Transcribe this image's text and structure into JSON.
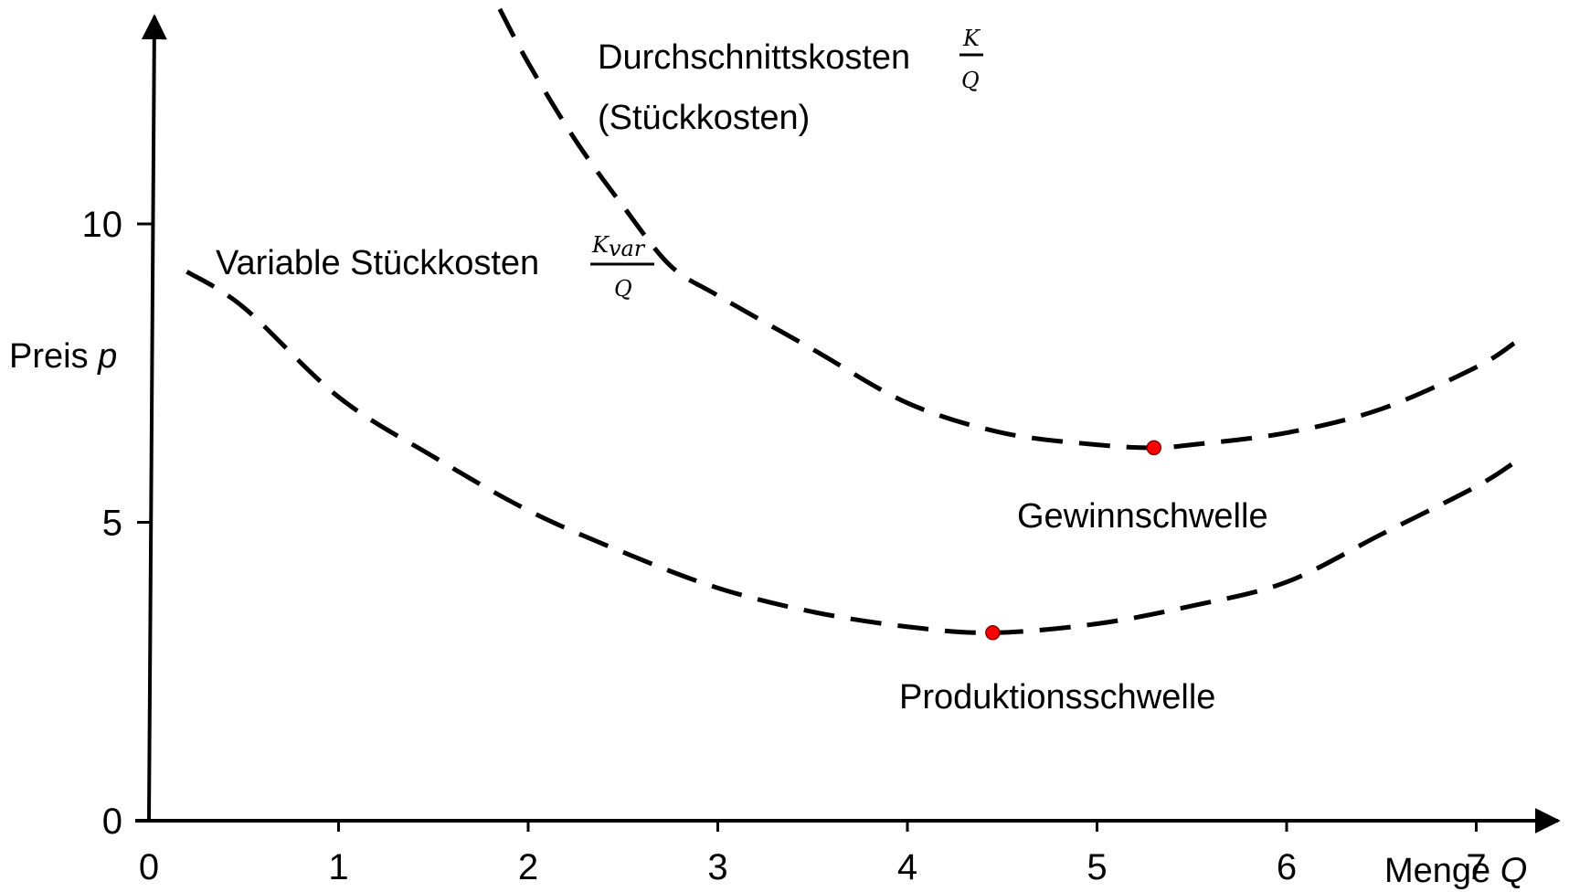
{
  "chart_data": {
    "type": "line",
    "xlabel": "Menge",
    "xlabel_var": "Q",
    "ylabel": "Preis",
    "ylabel_var": "p",
    "xlim": [
      0,
      7.5
    ],
    "ylim": [
      0,
      13.5
    ],
    "xticks": [
      "0",
      "1",
      "2",
      "3",
      "4",
      "5",
      "6",
      "7"
    ],
    "yticks": [
      "0",
      "5",
      "10"
    ],
    "series": [
      {
        "name": "Durchschnittskosten",
        "name_line2": "(Stückkosten)",
        "fraction_num": "K",
        "fraction_den": "Q",
        "x": [
          1.85,
          2.0,
          2.25,
          2.5,
          2.75,
          3.0,
          3.5,
          4.0,
          4.5,
          5.0,
          5.3,
          5.5,
          6.0,
          6.5,
          7.0,
          7.2
        ],
        "y": [
          13.6,
          12.7,
          11.4,
          10.3,
          9.3,
          8.8,
          7.9,
          7.0,
          6.5,
          6.3,
          6.25,
          6.3,
          6.5,
          6.9,
          7.6,
          8.0
        ]
      },
      {
        "name": "Variable Stückkosten",
        "fraction_num": "K_var",
        "fraction_den": "Q",
        "x": [
          0.2,
          0.5,
          1.0,
          1.5,
          2.0,
          2.5,
          3.0,
          3.5,
          4.0,
          4.45,
          5.0,
          5.5,
          6.0,
          6.5,
          7.0,
          7.2
        ],
        "y": [
          9.2,
          8.6,
          7.1,
          6.1,
          5.2,
          4.5,
          3.9,
          3.5,
          3.25,
          3.15,
          3.3,
          3.6,
          4.0,
          4.8,
          5.6,
          6.0
        ]
      }
    ],
    "points": [
      {
        "name": "Gewinnschwelle",
        "x": 5.3,
        "y": 6.25
      },
      {
        "name": "Produktionsschwelle",
        "x": 4.45,
        "y": 3.15
      }
    ],
    "point_color": "#ff0000",
    "grid": false,
    "legend": "none"
  }
}
